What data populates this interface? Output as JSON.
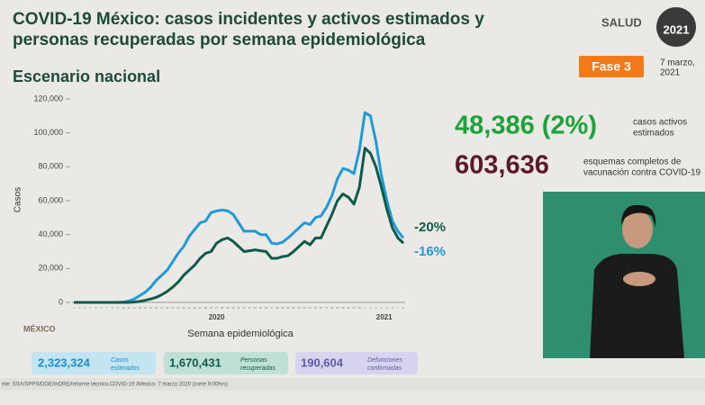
{
  "header": {
    "title_line1": "COVID-19 México: casos incidentes y activos estimados y",
    "title_line2": "personas recuperadas por semana epidemiológica",
    "subtitle": "Escenario nacional",
    "logo": "SALUD",
    "year_logo": "2021",
    "phase": "Fase 3",
    "date_line1": "7 marzo,",
    "date_line2": "2021"
  },
  "chart_data": {
    "type": "line",
    "ylabel": "Casos",
    "xlabel": "Semana epidemiológica",
    "categories": [
      "1",
      "2",
      "3",
      "4",
      "5",
      "6",
      "7",
      "8",
      "9",
      "10",
      "11",
      "12",
      "13",
      "14",
      "15",
      "16",
      "17",
      "18",
      "19",
      "20",
      "21",
      "22",
      "23",
      "24",
      "25",
      "26",
      "27",
      "28",
      "29",
      "30",
      "31",
      "32",
      "33",
      "34",
      "35",
      "36",
      "37",
      "38",
      "39",
      "40",
      "41",
      "42",
      "43",
      "44",
      "45",
      "46",
      "47",
      "48",
      "49",
      "50",
      "51",
      "52",
      "53",
      "1",
      "2",
      "3",
      "4",
      "5",
      "6",
      "7",
      "8"
    ],
    "x_groups": [
      {
        "label": "2020",
        "from": 0,
        "to": 52
      },
      {
        "label": "2021",
        "from": 53,
        "to": 60
      }
    ],
    "series": [
      {
        "color": "#1e9ad6",
        "values": [
          0,
          0,
          0,
          0,
          0,
          0,
          0,
          0,
          0,
          200,
          800,
          2000,
          4000,
          6000,
          9000,
          13000,
          16000,
          19000,
          24000,
          29000,
          33000,
          39000,
          43000,
          47000,
          48000,
          53000,
          54000,
          54500,
          54000,
          52000,
          47000,
          42000,
          42000,
          42000,
          40000,
          40000,
          35000,
          34500,
          35500,
          38000,
          41000,
          44000,
          47000,
          46000,
          50000,
          51000,
          56000,
          63000,
          73000,
          79000,
          78000,
          76000,
          90000,
          112000,
          110000,
          95000,
          75000,
          60000,
          48000,
          42000,
          38000
        ]
      },
      {
        "color": "#0f5a4a",
        "values": [
          0,
          0,
          0,
          0,
          0,
          0,
          0,
          0,
          0,
          0,
          0,
          200,
          600,
          1200,
          2000,
          3000,
          4500,
          6500,
          9000,
          12000,
          16000,
          19000,
          22000,
          26000,
          29000,
          30000,
          35000,
          37000,
          38000,
          36000,
          33000,
          30000,
          30500,
          31000,
          30500,
          30000,
          26000,
          26000,
          27000,
          27500,
          30000,
          33000,
          36000,
          34000,
          38000,
          38000,
          45000,
          52000,
          60000,
          64000,
          62000,
          58000,
          68000,
          91000,
          88000,
          80000,
          68000,
          55000,
          44000,
          38000,
          35000
        ]
      }
    ],
    "ylim": [
      0,
      120000
    ],
    "yticks": [
      0,
      {
        "value": 20000,
        "label": "20,000"
      },
      {
        "value": 40000,
        "label": "40,000"
      },
      {
        "value": 60000,
        "label": "60,000"
      },
      {
        "value": 80000,
        "label": "80,000"
      },
      {
        "value": 100000,
        "label": "100,000"
      },
      {
        "value": 120000,
        "label": "120,000"
      }
    ],
    "annotations": [
      {
        "text": "-20%",
        "color": "#0f5a4a"
      },
      {
        "text": "-16%",
        "color": "#1e9ad6"
      }
    ]
  },
  "stats": {
    "active": "48,386 (2%)",
    "active_label1": "casos activos",
    "active_label2": "estimados",
    "vaccine": "603,636",
    "vaccine_label1": "esquemas completos de",
    "vaccine_label2": "vacunación contra COVID-19"
  },
  "boxes": [
    {
      "value": "2,323,324",
      "label1": "Casos",
      "label2": "estimados"
    },
    {
      "value": "1,670,431",
      "label1": "Personas",
      "label2": "recuperadas"
    },
    {
      "value": "190,604",
      "label1": "Defunciones",
      "label2": "confirmadas"
    }
  ],
  "footer": {
    "source": "nte: SSA/SPPS/DGE/InDRE/Informe técnico.COVID-19 /México- 7 marzo 2020 (corte 9:00hrs)",
    "logo": "MÉXICO"
  }
}
